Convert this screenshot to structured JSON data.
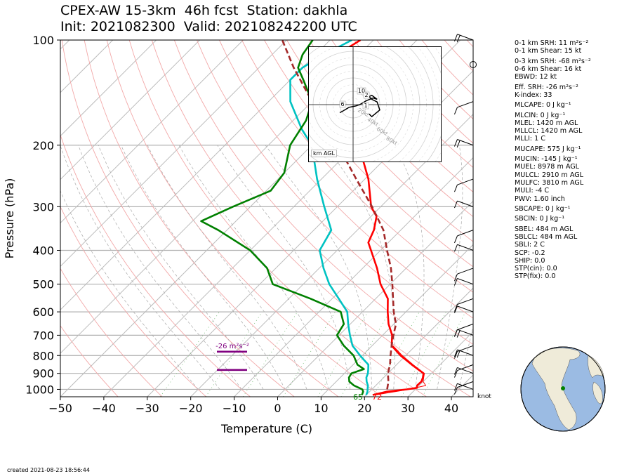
{
  "header": {
    "title_line1": "CPEX-AW 15-3km  46h fcst  Station: dakhla",
    "title_line2": "Init: 2021082300  Valid: 202108242200 UTC"
  },
  "chart_data": {
    "type": "line",
    "subtype": "skew-t log-p",
    "xlabel": "Temperature (C)",
    "ylabel": "Pressure (hPa)",
    "xlim": [
      -50,
      45
    ],
    "ylim": [
      1050,
      100
    ],
    "y_scale": "log",
    "x_ticks": [
      -50,
      -40,
      -30,
      -20,
      -10,
      0,
      10,
      20,
      30,
      40
    ],
    "x_tick_labels": [
      "−50",
      "−40",
      "−30",
      "−20",
      "−10",
      "0",
      "10",
      "20",
      "30",
      "40"
    ],
    "y_ticks": [
      1000,
      900,
      800,
      700,
      600,
      500,
      400,
      300,
      200,
      100
    ],
    "y_tick_labels": [
      "1000",
      "900",
      "800",
      "700",
      "600",
      "500",
      "400",
      "300",
      "200",
      "100"
    ],
    "series": [
      {
        "color": "#ff0000",
        "p": [
          1038,
          1015,
          1000,
          990,
          975,
          950,
          925,
          900,
          850,
          800,
          750,
          700,
          650,
          600,
          550,
          500,
          450,
          400,
          380,
          350,
          320,
          300,
          250,
          200,
          180,
          150,
          130,
          120,
          110,
          100
        ],
        "t": [
          21.5,
          24,
          28,
          30,
          29.5,
          29.6,
          29,
          28.2,
          23.5,
          18.8,
          14.5,
          12.2,
          8.8,
          5.8,
          2.8,
          -2.2,
          -6.7,
          -12.2,
          -14.6,
          -16.2,
          -18.7,
          -22.2,
          -29.2,
          -39.2,
          -44.5,
          -53,
          -61,
          -64,
          -65,
          -63
        ]
      },
      {
        "color": "#00c2c2",
        "p": [
          1038,
          1015,
          1000,
          975,
          950,
          925,
          900,
          875,
          850,
          825,
          800,
          750,
          700,
          650,
          600,
          550,
          500,
          450,
          400,
          350,
          300,
          250,
          200,
          180,
          150,
          130,
          120,
          110,
          100
        ],
        "t": [
          20,
          19.5,
          19,
          18.2,
          17,
          16,
          15.4,
          14.5,
          13.5,
          11.5,
          9.5,
          5.5,
          2.5,
          -0.5,
          -3.5,
          -8.5,
          -14,
          -19,
          -24,
          -26,
          -33,
          -41,
          -50,
          -56,
          -65,
          -70,
          -70,
          -68,
          -65
        ]
      },
      {
        "color": "#008000",
        "p": [
          1038,
          1015,
          1000,
          975,
          950,
          925,
          900,
          875,
          850,
          800,
          750,
          700,
          650,
          600,
          550,
          500,
          450,
          400,
          350,
          330,
          300,
          270,
          240,
          200,
          170,
          150,
          130,
          120,
          110,
          100
        ],
        "t": [
          19,
          18.5,
          17.8,
          15,
          13,
          12,
          11.6,
          13.5,
          11,
          8,
          3.5,
          -0.5,
          -1.5,
          -5,
          -15,
          -27,
          -32,
          -40,
          -52,
          -58,
          -54,
          -49,
          -50,
          -55,
          -57,
          -60,
          -67,
          -71,
          -73,
          -74
        ]
      },
      {
        "color": "#a52a2a",
        "dashed": true,
        "p": [
          1000,
          950,
          900,
          850,
          800,
          750,
          700,
          650,
          600,
          550,
          500,
          450,
          400,
          350,
          300,
          250,
          200,
          150,
          120,
          100
        ],
        "t": [
          23.5,
          22,
          20,
          18.5,
          16.5,
          14.5,
          12.5,
          10.5,
          7.2,
          4,
          0.5,
          -3.5,
          -8.5,
          -14,
          -22,
          -32,
          -44,
          -60,
          -72,
          -81
        ]
      },
      {
        "color": "#ff0000",
        "dashed": false,
        "p": [
          1038,
          1000,
          975,
          950,
          925,
          900,
          850,
          800,
          750
        ],
        "t": [
          22,
          28.5,
          31.5,
          30,
          29.2,
          28.4,
          23.8,
          19.2,
          14.8
        ]
      }
    ],
    "surface_labels": {
      "dewpoint": "65",
      "temperature": "72"
    },
    "srh_layer_label": "-26 m²s⁻²",
    "srh_layer": [
      880,
      780
    ],
    "wind_units": "knot",
    "hodograph": {
      "ring_labels": [
        "20kt",
        "40kt",
        "60kt",
        "80kt"
      ],
      "height_labels": [
        "10",
        "2",
        "6",
        "1"
      ],
      "label": "km AGL",
      "u": [
        -10,
        -8,
        -3,
        2,
        5,
        10,
        15,
        18,
        14,
        12,
        14,
        18,
        20,
        14,
        12
      ],
      "v": [
        -6,
        -5,
        -2,
        -1,
        0,
        3,
        5,
        4,
        7,
        6,
        4,
        2,
        -4,
        -9,
        -7
      ]
    },
    "grid": true
  },
  "indices": [
    {
      "text": "0-1 km SRH: 11 m²s⁻²"
    },
    {
      "text": "0-1 km Shear: 15 kt"
    },
    {
      "text": "0-3 km SRH: -68 m²s⁻²",
      "gap": true
    },
    {
      "text": "0-6 km Shear: 16 kt"
    },
    {
      "text": "EBWD: 12 kt"
    },
    {
      "text": "Eff. SRH: -26 m²s⁻²",
      "gap": true
    },
    {
      "text": "K-index: 33"
    },
    {
      "text": "MLCAPE: 0 J kg⁻¹",
      "gap": true
    },
    {
      "text": "MLCIN: 0 J kg⁻¹",
      "gap": true
    },
    {
      "text": "MLEL: 1420 m AGL"
    },
    {
      "text": "MLLCL: 1420 m AGL"
    },
    {
      "text": "MLLI: 1 C"
    },
    {
      "text": "MUCAPE: 575 J kg⁻¹",
      "gap": true
    },
    {
      "text": "MUCIN: -145 J kg⁻¹",
      "gap": true
    },
    {
      "text": "MUEL: 8978 m AGL"
    },
    {
      "text": "MULCL: 2910 m AGL"
    },
    {
      "text": "MULFC: 3810 m AGL"
    },
    {
      "text": "MULI: -4 C"
    },
    {
      "text": "PWV: 1.60 inch"
    },
    {
      "text": "SBCAPE: 0 J kg⁻¹",
      "gap": true
    },
    {
      "text": "SBCIN: 0 J kg⁻¹",
      "gap": true
    },
    {
      "text": "SBEL: 484 m AGL",
      "gap": true
    },
    {
      "text": "SBLCL: 484 m AGL"
    },
    {
      "text": "SBLI: 2 C"
    },
    {
      "text": "SCP: -0.2"
    },
    {
      "text": "SHIP: 0.0"
    },
    {
      "text": "STP(cin): 0.0"
    },
    {
      "text": "STP(fix): 0.0"
    }
  ],
  "footer": {
    "created": "created 2021-08-23 18:56:44"
  },
  "colors": {
    "temperature": "#ff0000",
    "dewpoint": "#008000",
    "wetbulb": "#00c2c2",
    "parcel": "#a52a2a",
    "srh": "#800080",
    "ocean": "#9bbbe3",
    "land": "#efebd9"
  }
}
